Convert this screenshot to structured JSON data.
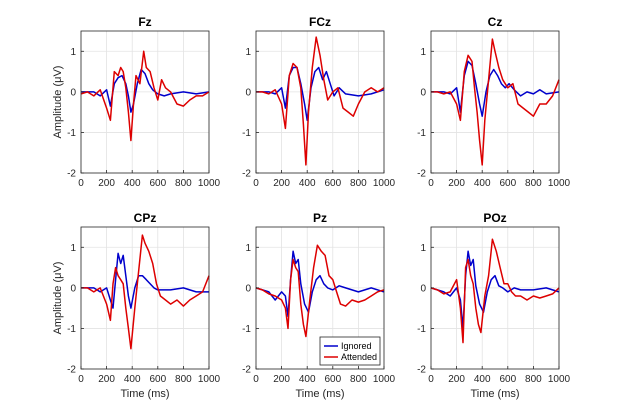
{
  "chart_data": [
    {
      "type": "line",
      "title": "Fz",
      "xlabel": "",
      "ylabel": "Amplitude (μV)",
      "xlim": [
        0,
        1000
      ],
      "ylim": [
        -2,
        1.5
      ],
      "grid": true,
      "xticks": [
        "0",
        "200",
        "400",
        "600",
        "800",
        "1000"
      ],
      "yticks": [
        "-2",
        "-1",
        "0",
        "1"
      ],
      "series": [
        {
          "name": "Ignored",
          "color": "#0000cc",
          "x": [
            0,
            50,
            100,
            150,
            200,
            230,
            260,
            290,
            320,
            350,
            370,
            390,
            410,
            440,
            470,
            500,
            530,
            560,
            600,
            650,
            700,
            800,
            900,
            1000
          ],
          "y": [
            0,
            0,
            0,
            -0.1,
            0.05,
            -0.35,
            0.2,
            0.35,
            0.4,
            0.2,
            -0.1,
            -0.5,
            -0.3,
            0.2,
            0.55,
            0.45,
            0.2,
            0.05,
            -0.05,
            -0.1,
            -0.05,
            0,
            -0.05,
            0
          ]
        },
        {
          "name": "Attended",
          "color": "#dd0000",
          "x": [
            0,
            50,
            100,
            150,
            200,
            230,
            260,
            290,
            310,
            330,
            350,
            370,
            390,
            410,
            430,
            460,
            490,
            510,
            540,
            570,
            600,
            630,
            660,
            700,
            750,
            800,
            850,
            900,
            950,
            1000
          ],
          "y": [
            -0.05,
            0,
            -0.1,
            0.05,
            -0.4,
            -0.7,
            0.5,
            0.4,
            0.6,
            0.5,
            0.1,
            -0.5,
            -1.2,
            -0.3,
            0.4,
            0.2,
            1.0,
            0.6,
            0.5,
            0.1,
            -0.2,
            0.3,
            0.1,
            0,
            -0.3,
            -0.35,
            -0.2,
            -0.1,
            -0.1,
            0
          ]
        }
      ]
    },
    {
      "type": "line",
      "title": "FCz",
      "xlabel": "",
      "ylabel": "",
      "xlim": [
        0,
        1000
      ],
      "ylim": [
        -2,
        1.5
      ],
      "grid": true,
      "xticks": [
        "0",
        "200",
        "400",
        "600",
        "800",
        "1000"
      ],
      "yticks": [
        "-2",
        "-1",
        "0",
        "1"
      ],
      "series": [
        {
          "name": "Ignored",
          "color": "#0000cc",
          "x": [
            0,
            50,
            100,
            150,
            200,
            230,
            260,
            290,
            320,
            350,
            380,
            400,
            430,
            460,
            490,
            520,
            550,
            580,
            610,
            650,
            700,
            800,
            900,
            1000
          ],
          "y": [
            0,
            0,
            0,
            -0.05,
            0.1,
            -0.4,
            0.4,
            0.6,
            0.6,
            0.2,
            -0.3,
            -0.7,
            0.1,
            0.5,
            0.6,
            0.3,
            0.5,
            0.2,
            -0.1,
            0.1,
            -0.05,
            -0.1,
            -0.05,
            0.05
          ]
        },
        {
          "name": "Attended",
          "color": "#dd0000",
          "x": [
            0,
            50,
            100,
            150,
            200,
            230,
            260,
            290,
            320,
            350,
            370,
            390,
            410,
            440,
            470,
            500,
            530,
            560,
            600,
            640,
            680,
            720,
            760,
            800,
            850,
            900,
            950,
            1000
          ],
          "y": [
            0,
            0,
            -0.05,
            0.05,
            -0.3,
            -0.9,
            0.4,
            0.7,
            0.6,
            0.1,
            -0.8,
            -1.8,
            -0.5,
            0.6,
            1.35,
            0.9,
            0.3,
            -0.2,
            0,
            0.1,
            -0.4,
            -0.5,
            -0.6,
            -0.3,
            0,
            0.1,
            0,
            0.1
          ]
        }
      ]
    },
    {
      "type": "line",
      "title": "Cz",
      "xlabel": "",
      "ylabel": "",
      "xlim": [
        0,
        1000
      ],
      "ylim": [
        -2,
        1.5
      ],
      "grid": true,
      "xticks": [
        "0",
        "200",
        "400",
        "600",
        "800",
        "1000"
      ],
      "yticks": [
        "-2",
        "-1",
        "0",
        "1"
      ],
      "series": [
        {
          "name": "Ignored",
          "color": "#0000cc",
          "x": [
            0,
            50,
            100,
            150,
            200,
            230,
            260,
            290,
            320,
            350,
            380,
            400,
            430,
            460,
            490,
            520,
            550,
            580,
            610,
            650,
            700,
            750,
            800,
            850,
            900,
            1000
          ],
          "y": [
            0,
            0,
            0,
            -0.05,
            0.1,
            -0.5,
            0.4,
            0.75,
            0.65,
            0.2,
            -0.3,
            -0.6,
            0,
            0.4,
            0.55,
            0.4,
            0.2,
            0.1,
            0.2,
            0.05,
            -0.1,
            0,
            -0.05,
            0.05,
            -0.05,
            0
          ]
        },
        {
          "name": "Attended",
          "color": "#dd0000",
          "x": [
            0,
            50,
            100,
            150,
            200,
            230,
            260,
            290,
            320,
            340,
            360,
            380,
            400,
            420,
            450,
            480,
            500,
            530,
            560,
            600,
            640,
            680,
            720,
            760,
            800,
            850,
            900,
            950,
            1000
          ],
          "y": [
            0,
            0,
            -0.05,
            0,
            -0.3,
            -0.7,
            0.5,
            0.9,
            0.75,
            0.1,
            -0.5,
            -1.2,
            -1.8,
            -0.7,
            0.3,
            1.3,
            1.0,
            0.6,
            0.3,
            0.1,
            0.2,
            -0.3,
            -0.4,
            -0.5,
            -0.6,
            -0.3,
            -0.3,
            -0.1,
            0.3
          ]
        }
      ]
    },
    {
      "type": "line",
      "title": "CPz",
      "xlabel": "Time (ms)",
      "ylabel": "Amplitude (μV)",
      "xlim": [
        0,
        1000
      ],
      "ylim": [
        -2,
        1.5
      ],
      "grid": true,
      "xticks": [
        "0",
        "200",
        "400",
        "600",
        "800",
        "1000"
      ],
      "yticks": [
        "-2",
        "-1",
        "0",
        "1"
      ],
      "series": [
        {
          "name": "Ignored",
          "color": "#0000cc",
          "x": [
            0,
            50,
            100,
            150,
            200,
            230,
            250,
            270,
            290,
            310,
            330,
            350,
            370,
            390,
            420,
            450,
            480,
            510,
            540,
            570,
            600,
            650,
            700,
            800,
            900,
            1000
          ],
          "y": [
            0,
            0,
            0,
            -0.1,
            0,
            -0.3,
            -0.5,
            0.2,
            0.85,
            0.6,
            0.8,
            0.3,
            -0.2,
            -0.5,
            0,
            0.3,
            0.3,
            0.2,
            0.1,
            0,
            -0.05,
            -0.05,
            -0.05,
            0,
            -0.1,
            -0.1
          ]
        },
        {
          "name": "Attended",
          "color": "#dd0000",
          "x": [
            0,
            50,
            100,
            150,
            200,
            230,
            250,
            270,
            290,
            310,
            330,
            350,
            370,
            390,
            420,
            450,
            480,
            500,
            530,
            560,
            590,
            620,
            660,
            700,
            750,
            800,
            850,
            900,
            950,
            1000
          ],
          "y": [
            0,
            0,
            -0.1,
            0,
            -0.4,
            -0.8,
            0.1,
            0.5,
            0.3,
            0.2,
            0.1,
            -0.5,
            -1.0,
            -1.5,
            -0.5,
            0.4,
            1.3,
            1.1,
            0.9,
            0.6,
            0.1,
            -0.2,
            -0.3,
            -0.4,
            -0.3,
            -0.45,
            -0.3,
            -0.2,
            -0.1,
            0.3
          ]
        }
      ]
    },
    {
      "type": "line",
      "title": "Pz",
      "xlabel": "Time (ms)",
      "ylabel": "",
      "xlim": [
        0,
        1000
      ],
      "ylim": [
        -2,
        1.5
      ],
      "grid": true,
      "xticks": [
        "0",
        "200",
        "400",
        "600",
        "800",
        "1000"
      ],
      "yticks": [
        "-2",
        "-1",
        "0",
        "1"
      ],
      "legend": "bottom-right",
      "series": [
        {
          "name": "Ignored",
          "color": "#0000cc",
          "x": [
            0,
            50,
            100,
            150,
            200,
            230,
            250,
            270,
            290,
            310,
            330,
            350,
            380,
            410,
            440,
            470,
            500,
            530,
            560,
            600,
            650,
            700,
            800,
            900,
            1000
          ],
          "y": [
            0,
            -0.05,
            -0.1,
            -0.3,
            -0.1,
            -0.2,
            -0.7,
            0.2,
            0.9,
            0.6,
            0.7,
            0.1,
            -0.4,
            -0.6,
            -0.1,
            0.2,
            0.3,
            0.1,
            0,
            -0.05,
            0.05,
            0,
            -0.1,
            0,
            -0.1
          ]
        },
        {
          "name": "Attended",
          "color": "#dd0000",
          "x": [
            0,
            50,
            100,
            150,
            200,
            230,
            250,
            270,
            290,
            310,
            330,
            350,
            370,
            390,
            420,
            450,
            480,
            510,
            540,
            570,
            600,
            630,
            660,
            700,
            750,
            800,
            850,
            900,
            950,
            1000
          ],
          "y": [
            0,
            -0.05,
            -0.15,
            -0.2,
            -0.3,
            -0.5,
            -1.0,
            0.2,
            0.7,
            0.5,
            0.4,
            -0.4,
            -0.9,
            -1.2,
            -0.3,
            0.5,
            1.05,
            0.9,
            0.8,
            0.3,
            0.2,
            -0.1,
            -0.4,
            -0.45,
            -0.3,
            -0.35,
            -0.3,
            -0.2,
            -0.1,
            -0.05
          ]
        }
      ]
    },
    {
      "type": "line",
      "title": "POz",
      "xlabel": "Time (ms)",
      "ylabel": "",
      "xlim": [
        0,
        1000
      ],
      "ylim": [
        -2,
        1.5
      ],
      "grid": true,
      "xticks": [
        "0",
        "200",
        "400",
        "600",
        "800",
        "1000"
      ],
      "yticks": [
        "-2",
        "-1",
        "0",
        "1"
      ],
      "series": [
        {
          "name": "Ignored",
          "color": "#0000cc",
          "x": [
            0,
            50,
            100,
            150,
            200,
            230,
            250,
            270,
            290,
            310,
            330,
            350,
            380,
            410,
            440,
            470,
            500,
            530,
            560,
            600,
            650,
            700,
            800,
            900,
            1000
          ],
          "y": [
            0,
            -0.05,
            -0.1,
            -0.2,
            0,
            -0.3,
            -1.0,
            0.3,
            0.9,
            0.55,
            0.7,
            0.05,
            -0.4,
            -0.6,
            -0.1,
            0.2,
            0.3,
            0.05,
            0,
            -0.1,
            0,
            -0.05,
            -0.05,
            0,
            -0.1
          ]
        },
        {
          "name": "Attended",
          "color": "#dd0000",
          "x": [
            0,
            50,
            100,
            150,
            200,
            230,
            250,
            270,
            290,
            310,
            330,
            350,
            370,
            390,
            420,
            450,
            480,
            510,
            540,
            570,
            600,
            630,
            660,
            700,
            750,
            800,
            850,
            900,
            950,
            1000
          ],
          "y": [
            0,
            -0.05,
            -0.15,
            -0.1,
            0.2,
            -0.5,
            -1.35,
            0.5,
            0.7,
            0.3,
            0.1,
            -0.5,
            -0.9,
            -1.1,
            -0.2,
            0.3,
            1.2,
            0.9,
            0.5,
            0.1,
            0.1,
            -0.1,
            -0.2,
            -0.2,
            -0.3,
            -0.2,
            -0.25,
            -0.2,
            -0.15,
            0
          ]
        }
      ]
    }
  ]
}
